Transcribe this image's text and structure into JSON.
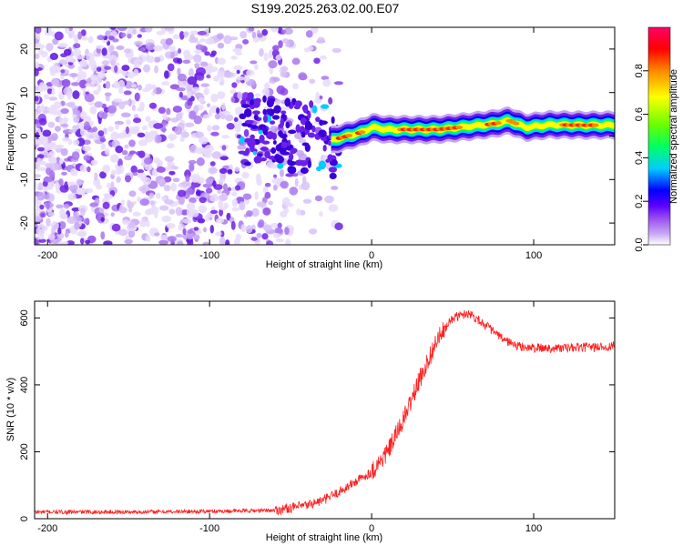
{
  "title": "S199.2025.263.02.00.E07",
  "chart_data": [
    {
      "type": "heatmap",
      "xlabel": "Height of straight line (km)",
      "ylabel": "Frequency (Hz)",
      "xlim": [
        -208,
        150
      ],
      "ylim": [
        -25,
        25
      ],
      "xticks": [
        -200,
        -100,
        0,
        100
      ],
      "xtick_labels": [
        "-200",
        "-100",
        "0",
        "100"
      ],
      "yticks": [
        -20,
        -10,
        0,
        10,
        20
      ],
      "ytick_labels": [
        "-20",
        "-10",
        "0",
        "10",
        "20"
      ],
      "ridge_line": {
        "x": [
          -25,
          -15,
          -5,
          0,
          10,
          20,
          40,
          60,
          75,
          85,
          95,
          110,
          130,
          150
        ],
        "y": [
          -1,
          0,
          1,
          2,
          1.5,
          1.5,
          1.5,
          2.2,
          2.8,
          3.5,
          2,
          2.6,
          2.5,
          2.5
        ]
      },
      "colorbar": {
        "label": "Normalized spectral amplitude",
        "min": 0.0,
        "max": 1.0,
        "ticks": [
          0.0,
          0.2,
          0.4,
          0.6,
          0.8
        ],
        "tick_labels": [
          "0.0",
          "0.2",
          "0.4",
          "0.6",
          "0.8"
        ],
        "colors": [
          "#ffffff",
          "#c9a9f5",
          "#9a50f0",
          "#5a00ff",
          "#0000ff",
          "#00ccff",
          "#00ff66",
          "#66ff00",
          "#ffff00",
          "#ff8800",
          "#ff0000",
          "#ff0066"
        ]
      }
    },
    {
      "type": "line",
      "xlabel": "Height of straight line (km)",
      "ylabel": "SNR (10 * v/v)",
      "xlim": [
        -208,
        150
      ],
      "ylim": [
        0,
        650
      ],
      "xticks": [
        -200,
        -100,
        0,
        100
      ],
      "xtick_labels": [
        "-200",
        "-100",
        "0",
        "100"
      ],
      "yticks": [
        0,
        200,
        400,
        600
      ],
      "ytick_labels": [
        "0",
        "200",
        "400",
        "600"
      ],
      "series": [
        {
          "name": "SNR",
          "color": "#ff2020",
          "x": [
            -208,
            -150,
            -100,
            -60,
            -40,
            -30,
            -20,
            -10,
            0,
            10,
            20,
            30,
            40,
            50,
            60,
            70,
            80,
            90,
            100,
            120,
            150
          ],
          "y": [
            20,
            20,
            22,
            25,
            40,
            55,
            80,
            110,
            140,
            200,
            300,
            420,
            530,
            600,
            615,
            580,
            540,
            515,
            510,
            510,
            515
          ]
        }
      ]
    }
  ]
}
